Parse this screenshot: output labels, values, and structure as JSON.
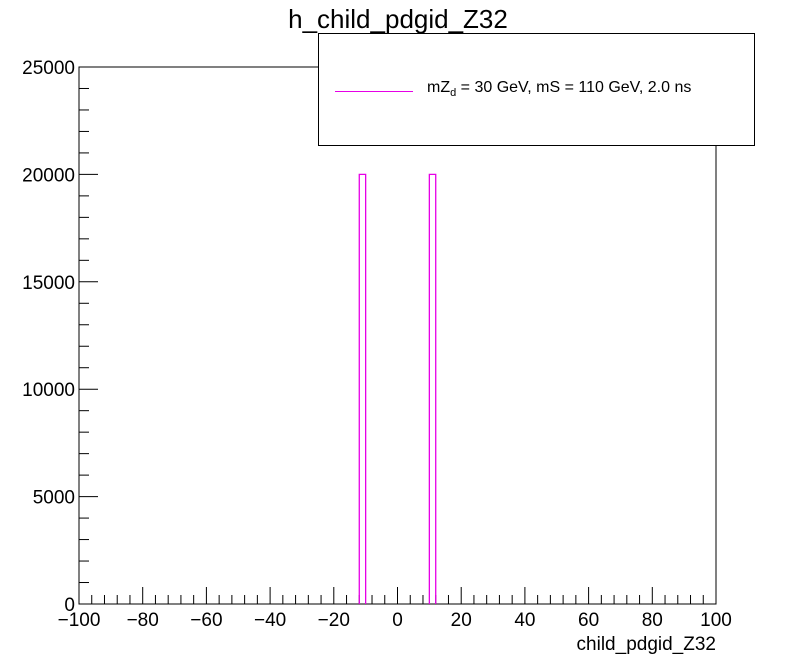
{
  "chart_data": {
    "type": "bar",
    "title": "h_child_pdgid_Z32",
    "xlabel": "child_pdgid_Z32",
    "ylabel": "",
    "xlim": [
      -100,
      100
    ],
    "ylim": [
      0,
      25000
    ],
    "x_ticks": [
      -100,
      -80,
      -60,
      -40,
      -20,
      0,
      20,
      40,
      60,
      80,
      100
    ],
    "x_tick_labels": [
      "−100",
      "−80",
      "−60",
      "−40",
      "−20",
      "0",
      "20",
      "40",
      "60",
      "80",
      "100"
    ],
    "y_ticks": [
      0,
      5000,
      10000,
      15000,
      20000,
      25000
    ],
    "y_tick_labels": [
      "0",
      "5000",
      "10000",
      "15000",
      "20000",
      "25000"
    ],
    "bin_width": 2,
    "series": [
      {
        "name": "mZd = 30 GeV, mS = 110 GeV, 2.0 ns",
        "color": "#e600e6",
        "bins": [
          {
            "x_low": -12,
            "x_high": -10,
            "value": 20000
          },
          {
            "x_low": 10,
            "x_high": 12,
            "value": 20000
          }
        ]
      }
    ],
    "legend": {
      "placement": "top-right",
      "label_main": "mZ",
      "label_sub": "d",
      "label_rest": " = 30 GeV, mS = 110 GeV, 2.0 ns"
    },
    "grid": false
  }
}
